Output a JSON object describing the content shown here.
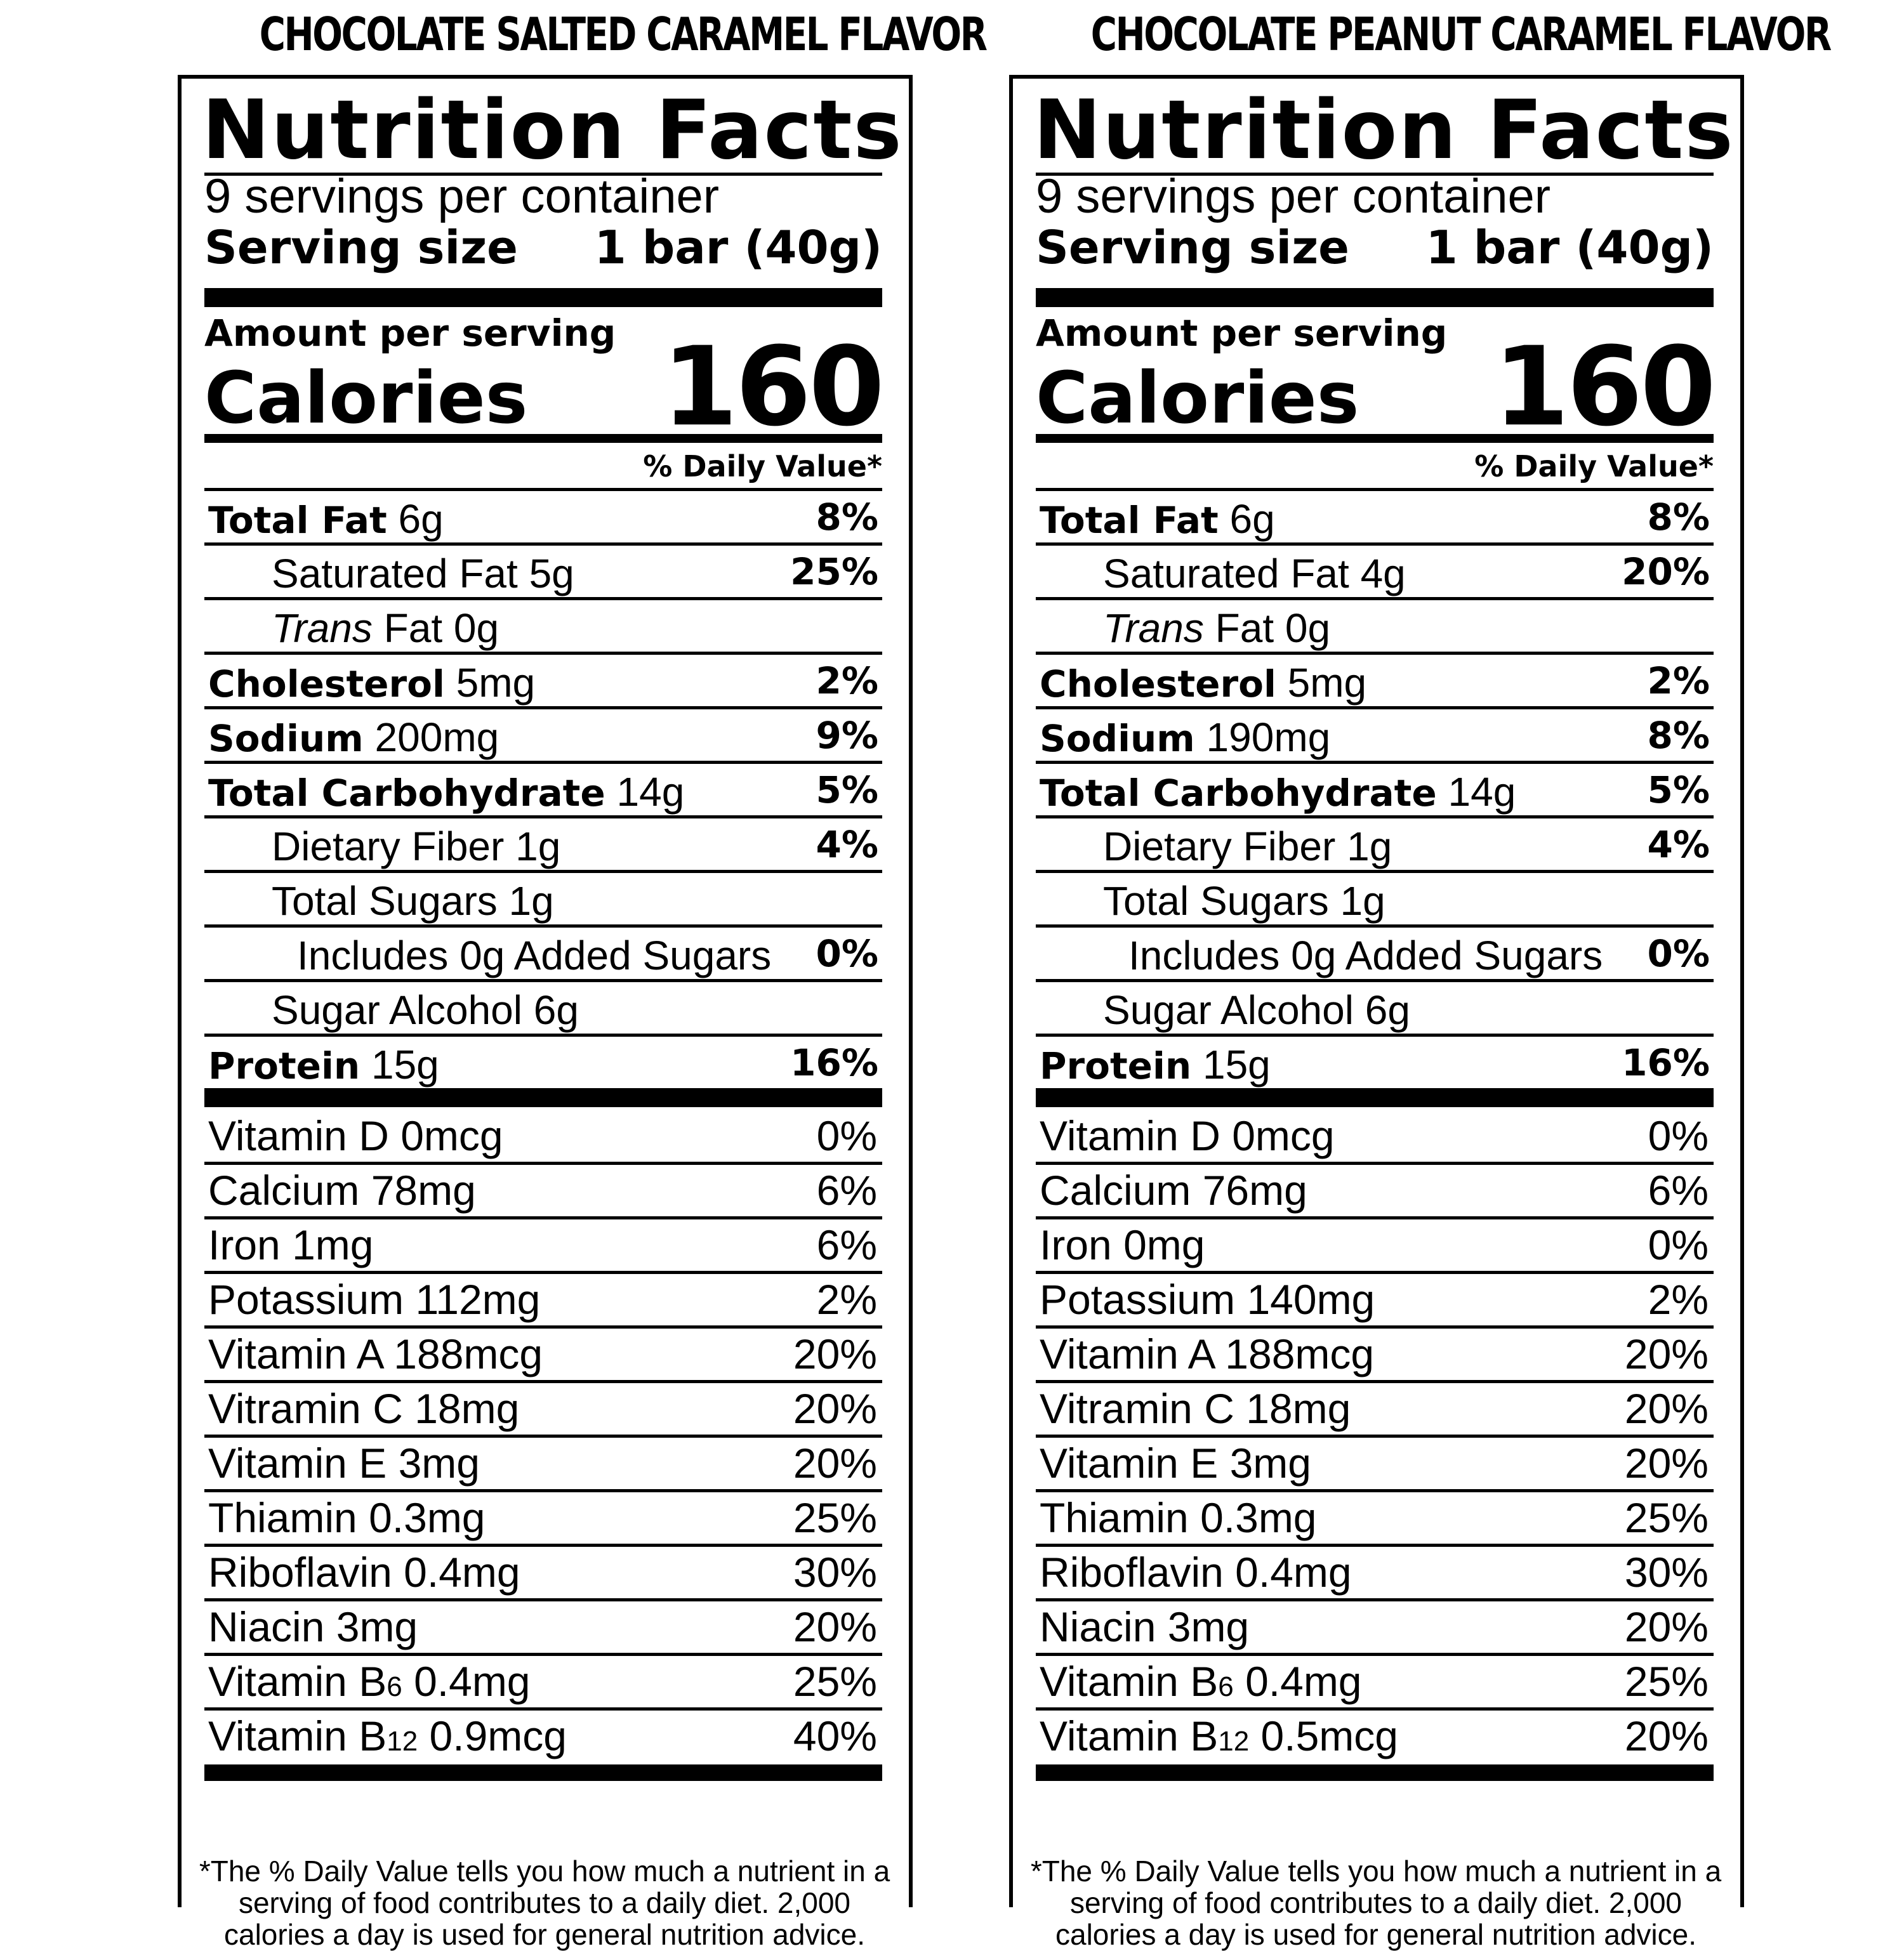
{
  "panels": [
    {
      "flavor": "CHOCOLATE SALTED CARAMEL FLAVOR",
      "title": "Nutrition Facts",
      "servings_per_container": "9 servings per container",
      "serving_size_label": "Serving size",
      "serving_size_value": "1 bar (40g)",
      "amount_per_serving": "Amount per serving",
      "calories_label": "Calories",
      "calories_value": "160",
      "daily_value_header": "% Daily Value*",
      "nutrients": [
        {
          "label": "Total Fat",
          "amount": " 6g",
          "dv": "8%"
        },
        {
          "label": "Saturated Fat 5g",
          "amount": "",
          "dv": "25%"
        },
        {
          "label": "Trans",
          "amount": " Fat 0g",
          "dv": ""
        },
        {
          "label": "Cholesterol",
          "amount": " 5mg",
          "dv": "2%"
        },
        {
          "label": "Sodium",
          "amount": " 200mg",
          "dv": "9%"
        },
        {
          "label": "Total Carbohydrate",
          "amount": " 14g",
          "dv": "5%"
        },
        {
          "label": "Dietary Fiber 1g",
          "amount": "",
          "dv": "4%"
        },
        {
          "label": "Total Sugars 1g",
          "amount": "",
          "dv": ""
        },
        {
          "label": "Includes 0g Added Sugars",
          "amount": "",
          "dv": "0%"
        },
        {
          "label": "Sugar Alcohol 6g",
          "amount": "",
          "dv": ""
        },
        {
          "label": "Protein",
          "amount": " 15g",
          "dv": "16%"
        }
      ],
      "vitamins": [
        {
          "name": "Vitamin D 0mcg",
          "dv": "0%"
        },
        {
          "name": "Calcium 78mg",
          "dv": "6%"
        },
        {
          "name": "Iron 1mg",
          "dv": "6%"
        },
        {
          "name": "Potassium 112mg",
          "dv": "2%"
        },
        {
          "name": "Vitamin A 188mcg",
          "dv": "20%"
        },
        {
          "name": "Vitramin C 18mg",
          "dv": "20%"
        },
        {
          "name": "Vitamin E 3mg",
          "dv": "20%"
        },
        {
          "name": "Thiamin 0.3mg",
          "dv": "25%"
        },
        {
          "name": "Riboflavin 0.4mg",
          "dv": "30%"
        },
        {
          "name": "Niacin 3mg",
          "dv": "20%"
        },
        {
          "name": "Vitamin B",
          "sub": "6",
          "rest": " 0.4mg",
          "dv": "25%"
        },
        {
          "name": "Vitamin B",
          "sub": "12",
          "rest": " 0.9mcg",
          "dv": "40%"
        }
      ],
      "footnote": "*The % Daily Value tells you how much a nutrient in a serving of food contributes to a daily diet. 2,000 calories a day is used for general nutrition advice."
    },
    {
      "flavor": "CHOCOLATE PEANUT CARAMEL FLAVOR",
      "title": "Nutrition Facts",
      "servings_per_container": "9 servings per container",
      "serving_size_label": "Serving size",
      "serving_size_value": "1 bar (40g)",
      "amount_per_serving": "Amount per serving",
      "calories_label": "Calories",
      "calories_value": "160",
      "daily_value_header": "% Daily Value*",
      "nutrients": [
        {
          "label": "Total Fat",
          "amount": " 6g",
          "dv": "8%"
        },
        {
          "label": "Saturated Fat 4g",
          "amount": "",
          "dv": "20%"
        },
        {
          "label": "Trans",
          "amount": " Fat 0g",
          "dv": ""
        },
        {
          "label": "Cholesterol",
          "amount": " 5mg",
          "dv": "2%"
        },
        {
          "label": "Sodium",
          "amount": " 190mg",
          "dv": "8%"
        },
        {
          "label": "Total Carbohydrate",
          "amount": " 14g",
          "dv": "5%"
        },
        {
          "label": "Dietary Fiber 1g",
          "amount": "",
          "dv": "4%"
        },
        {
          "label": "Total Sugars 1g",
          "amount": "",
          "dv": ""
        },
        {
          "label": "Includes 0g Added Sugars",
          "amount": "",
          "dv": "0%"
        },
        {
          "label": "Sugar Alcohol 6g",
          "amount": "",
          "dv": ""
        },
        {
          "label": "Protein",
          "amount": " 15g",
          "dv": "16%"
        }
      ],
      "vitamins": [
        {
          "name": "Vitamin D 0mcg",
          "dv": "0%"
        },
        {
          "name": "Calcium 76mg",
          "dv": "6%"
        },
        {
          "name": "Iron 0mg",
          "dv": "0%"
        },
        {
          "name": "Potassium 140mg",
          "dv": "2%"
        },
        {
          "name": "Vitamin A 188mcg",
          "dv": "20%"
        },
        {
          "name": "Vitramin C 18mg",
          "dv": "20%"
        },
        {
          "name": "Vitamin E 3mg",
          "dv": "20%"
        },
        {
          "name": "Thiamin 0.3mg",
          "dv": "25%"
        },
        {
          "name": "Riboflavin 0.4mg",
          "dv": "30%"
        },
        {
          "name": "Niacin 3mg",
          "dv": "20%"
        },
        {
          "name": "Vitamin B",
          "sub": "6",
          "rest": " 0.4mg",
          "dv": "25%"
        },
        {
          "name": "Vitamin B",
          "sub": "12",
          "rest": " 0.5mcg",
          "dv": "20%"
        }
      ],
      "footnote": "*The % Daily Value tells you how much a nutrient in a serving of food contributes to a daily diet. 2,000 calories a day is used for general nutrition advice."
    }
  ]
}
